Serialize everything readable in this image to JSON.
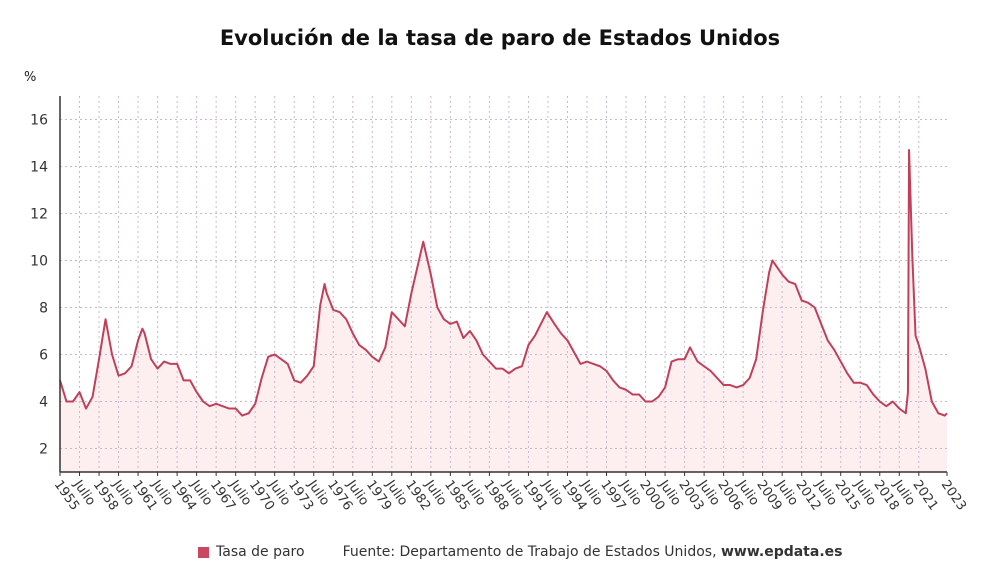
{
  "chart_data": {
    "type": "area",
    "title": "Evolución de la tasa de paro de Estados Unidos",
    "ylabel": "%",
    "xlabel": "",
    "ylim": [
      1,
      17
    ],
    "yticks": [
      2,
      4,
      6,
      8,
      10,
      12,
      14,
      16
    ],
    "xlim": [
      "1955-01",
      "2023-03"
    ],
    "grid": true,
    "legend_placement": "bottom",
    "xtick_labels": [
      "1955",
      "Julio",
      "1958",
      "Julio",
      "1961",
      "Julio",
      "1964",
      "Julio",
      "1967",
      "Julio",
      "1970",
      "Julio",
      "1973",
      "Julio",
      "1976",
      "Julio",
      "1979",
      "Julio",
      "1982",
      "Julio",
      "1985",
      "Julio",
      "1988",
      "Julio",
      "1991",
      "Julio",
      "1994",
      "Julio",
      "1997",
      "Julio",
      "2000",
      "Julio",
      "2003",
      "Julio",
      "2006",
      "Julio",
      "2009",
      "Julio",
      "2012",
      "Julio",
      "2015",
      "Julio",
      "2018",
      "Julio",
      "2021",
      "2023"
    ],
    "colors": {
      "line": "#c0405a",
      "fill": "#fdeef0"
    },
    "series": [
      {
        "name": "Tasa de paro",
        "points": [
          [
            "1955-01",
            4.9
          ],
          [
            "1955-07",
            4.0
          ],
          [
            "1956-01",
            4.0
          ],
          [
            "1956-07",
            4.4
          ],
          [
            "1957-01",
            3.7
          ],
          [
            "1957-07",
            4.2
          ],
          [
            "1958-01",
            5.8
          ],
          [
            "1958-07",
            7.5
          ],
          [
            "1959-01",
            6.0
          ],
          [
            "1959-07",
            5.1
          ],
          [
            "1960-01",
            5.2
          ],
          [
            "1960-07",
            5.5
          ],
          [
            "1961-01",
            6.6
          ],
          [
            "1961-05",
            7.1
          ],
          [
            "1961-07",
            6.9
          ],
          [
            "1962-01",
            5.8
          ],
          [
            "1962-07",
            5.4
          ],
          [
            "1963-01",
            5.7
          ],
          [
            "1963-07",
            5.6
          ],
          [
            "1964-01",
            5.6
          ],
          [
            "1964-07",
            4.9
          ],
          [
            "1965-01",
            4.9
          ],
          [
            "1965-07",
            4.4
          ],
          [
            "1966-01",
            4.0
          ],
          [
            "1966-07",
            3.8
          ],
          [
            "1967-01",
            3.9
          ],
          [
            "1967-07",
            3.8
          ],
          [
            "1968-01",
            3.7
          ],
          [
            "1968-07",
            3.7
          ],
          [
            "1969-01",
            3.4
          ],
          [
            "1969-07",
            3.5
          ],
          [
            "1970-01",
            3.9
          ],
          [
            "1970-07",
            5.0
          ],
          [
            "1971-01",
            5.9
          ],
          [
            "1971-07",
            6.0
          ],
          [
            "1972-01",
            5.8
          ],
          [
            "1972-07",
            5.6
          ],
          [
            "1973-01",
            4.9
          ],
          [
            "1973-07",
            4.8
          ],
          [
            "1974-01",
            5.1
          ],
          [
            "1974-07",
            5.5
          ],
          [
            "1975-01",
            8.1
          ],
          [
            "1975-05",
            9.0
          ],
          [
            "1975-07",
            8.6
          ],
          [
            "1976-01",
            7.9
          ],
          [
            "1976-07",
            7.8
          ],
          [
            "1977-01",
            7.5
          ],
          [
            "1977-07",
            6.9
          ],
          [
            "1978-01",
            6.4
          ],
          [
            "1978-07",
            6.2
          ],
          [
            "1979-01",
            5.9
          ],
          [
            "1979-07",
            5.7
          ],
          [
            "1980-01",
            6.3
          ],
          [
            "1980-07",
            7.8
          ],
          [
            "1981-01",
            7.5
          ],
          [
            "1981-07",
            7.2
          ],
          [
            "1982-01",
            8.6
          ],
          [
            "1982-07",
            9.8
          ],
          [
            "1982-12",
            10.8
          ],
          [
            "1983-07",
            9.4
          ],
          [
            "1984-01",
            8.0
          ],
          [
            "1984-07",
            7.5
          ],
          [
            "1985-01",
            7.3
          ],
          [
            "1985-07",
            7.4
          ],
          [
            "1986-01",
            6.7
          ],
          [
            "1986-07",
            7.0
          ],
          [
            "1987-01",
            6.6
          ],
          [
            "1987-07",
            6.0
          ],
          [
            "1988-01",
            5.7
          ],
          [
            "1988-07",
            5.4
          ],
          [
            "1989-01",
            5.4
          ],
          [
            "1989-07",
            5.2
          ],
          [
            "1990-01",
            5.4
          ],
          [
            "1990-07",
            5.5
          ],
          [
            "1991-01",
            6.4
          ],
          [
            "1991-07",
            6.8
          ],
          [
            "1992-06",
            7.8
          ],
          [
            "1993-01",
            7.3
          ],
          [
            "1993-07",
            6.9
          ],
          [
            "1994-01",
            6.6
          ],
          [
            "1994-07",
            6.1
          ],
          [
            "1995-01",
            5.6
          ],
          [
            "1995-07",
            5.7
          ],
          [
            "1996-01",
            5.6
          ],
          [
            "1996-07",
            5.5
          ],
          [
            "1997-01",
            5.3
          ],
          [
            "1997-07",
            4.9
          ],
          [
            "1998-01",
            4.6
          ],
          [
            "1998-07",
            4.5
          ],
          [
            "1999-01",
            4.3
          ],
          [
            "1999-07",
            4.3
          ],
          [
            "2000-01",
            4.0
          ],
          [
            "2000-07",
            4.0
          ],
          [
            "2001-01",
            4.2
          ],
          [
            "2001-07",
            4.6
          ],
          [
            "2002-01",
            5.7
          ],
          [
            "2002-07",
            5.8
          ],
          [
            "2003-01",
            5.8
          ],
          [
            "2003-06",
            6.3
          ],
          [
            "2004-01",
            5.7
          ],
          [
            "2004-07",
            5.5
          ],
          [
            "2005-01",
            5.3
          ],
          [
            "2005-07",
            5.0
          ],
          [
            "2006-01",
            4.7
          ],
          [
            "2006-07",
            4.7
          ],
          [
            "2007-01",
            4.6
          ],
          [
            "2007-07",
            4.7
          ],
          [
            "2008-01",
            5.0
          ],
          [
            "2008-07",
            5.8
          ],
          [
            "2009-01",
            7.8
          ],
          [
            "2009-07",
            9.5
          ],
          [
            "2009-10",
            10.0
          ],
          [
            "2010-01",
            9.8
          ],
          [
            "2010-07",
            9.4
          ],
          [
            "2011-01",
            9.1
          ],
          [
            "2011-07",
            9.0
          ],
          [
            "2012-01",
            8.3
          ],
          [
            "2012-07",
            8.2
          ],
          [
            "2013-01",
            8.0
          ],
          [
            "2013-07",
            7.3
          ],
          [
            "2014-01",
            6.6
          ],
          [
            "2014-07",
            6.2
          ],
          [
            "2015-01",
            5.7
          ],
          [
            "2015-07",
            5.2
          ],
          [
            "2016-01",
            4.8
          ],
          [
            "2016-07",
            4.8
          ],
          [
            "2017-01",
            4.7
          ],
          [
            "2017-07",
            4.3
          ],
          [
            "2018-01",
            4.0
          ],
          [
            "2018-07",
            3.8
          ],
          [
            "2019-01",
            4.0
          ],
          [
            "2019-07",
            3.7
          ],
          [
            "2020-01",
            3.5
          ],
          [
            "2020-03",
            4.4
          ],
          [
            "2020-04",
            14.7
          ],
          [
            "2020-05",
            13.2
          ],
          [
            "2020-07",
            10.2
          ],
          [
            "2020-10",
            6.8
          ],
          [
            "2021-01",
            6.4
          ],
          [
            "2021-07",
            5.4
          ],
          [
            "2022-01",
            4.0
          ],
          [
            "2022-07",
            3.5
          ],
          [
            "2023-01",
            3.4
          ],
          [
            "2023-03",
            3.5
          ]
        ]
      }
    ]
  },
  "legend": {
    "label": "Tasa de paro"
  },
  "source": {
    "prefix": "Fuente: Departamento de Trabajo de Estados Unidos, ",
    "site": "www.epdata.es"
  }
}
